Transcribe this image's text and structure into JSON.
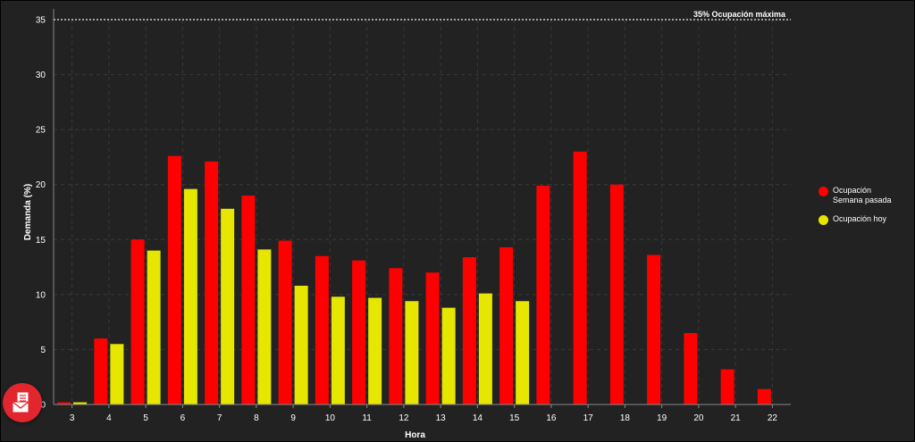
{
  "chart_data": {
    "type": "bar",
    "xlabel": "Hora",
    "ylabel": "Demanda (%)",
    "ylim": [
      0,
      35
    ],
    "yticks": [
      0,
      5,
      10,
      15,
      20,
      25,
      30,
      35
    ],
    "categories": [
      "3",
      "4",
      "5",
      "6",
      "7",
      "8",
      "9",
      "10",
      "11",
      "12",
      "13",
      "14",
      "15",
      "16",
      "17",
      "18",
      "19",
      "20",
      "21",
      "22"
    ],
    "series": [
      {
        "name": "Ocupación\nSemana pasada",
        "color": "#ff0000",
        "values": [
          0.2,
          6.0,
          15.0,
          22.6,
          22.1,
          19.0,
          14.9,
          13.5,
          13.1,
          12.4,
          12.0,
          13.4,
          14.3,
          19.9,
          23.0,
          20.0,
          13.6,
          6.5,
          3.2,
          1.4
        ]
      },
      {
        "name": "Ocupación hoy",
        "color": "#e6e600",
        "values": [
          0.2,
          5.5,
          14.0,
          19.6,
          17.8,
          14.1,
          10.8,
          9.8,
          9.7,
          9.4,
          8.8,
          10.1,
          9.4,
          null,
          null,
          null,
          null,
          null,
          null,
          null
        ]
      }
    ],
    "threshold": {
      "value": 35,
      "label": "35% Ocupación máxima"
    },
    "grid": true,
    "legend_position": "right"
  },
  "colors": {
    "background": "#222222",
    "grid": "#3a3a3a",
    "threshold_line": "#cccccc",
    "fab": "#e1262d"
  },
  "fab": {
    "icon": "mail-document-icon"
  }
}
